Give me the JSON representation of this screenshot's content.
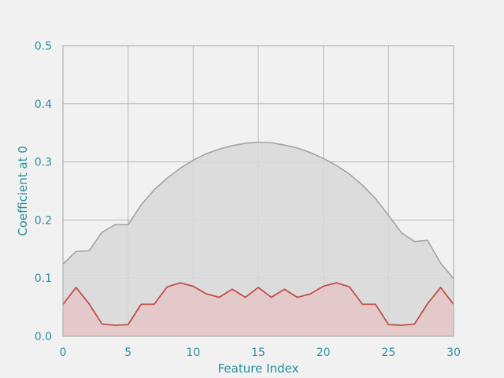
{
  "chart_data": {
    "type": "area",
    "xlabel": "Feature Index",
    "ylabel": "Coefficient at 0",
    "xlim": [
      0,
      30
    ],
    "ylim": [
      0,
      0.5
    ],
    "xticks": [
      0,
      5,
      10,
      15,
      20,
      25,
      30
    ],
    "yticks": [
      0.0,
      0.1,
      0.2,
      0.3,
      0.4,
      0.5
    ],
    "xtick_labels": [
      "0",
      "5",
      "10",
      "15",
      "20",
      "25",
      "30"
    ],
    "ytick_labels": [
      "0.0",
      "0.1",
      "0.2",
      "0.3",
      "0.4",
      "0.5"
    ],
    "grid": true,
    "x": [
      0,
      1,
      2,
      3,
      4,
      5,
      6,
      7,
      8,
      9,
      10,
      11,
      12,
      13,
      14,
      15,
      16,
      17,
      18,
      19,
      20,
      21,
      22,
      23,
      24,
      25,
      26,
      27,
      28,
      29,
      30
    ],
    "series": [
      {
        "values": [
          0.124,
          0.146,
          0.147,
          0.179,
          0.192,
          0.192,
          0.226,
          0.252,
          0.272,
          0.289,
          0.303,
          0.314,
          0.322,
          0.328,
          0.332,
          0.334,
          0.333,
          0.329,
          0.324,
          0.316,
          0.306,
          0.294,
          0.279,
          0.26,
          0.237,
          0.208,
          0.178,
          0.163,
          0.165,
          0.126,
          0.099
        ],
        "line_color": "#a4a4a4",
        "fill_color": "#d8d8d8"
      },
      {
        "values": [
          0.055,
          0.084,
          0.056,
          0.021,
          0.019,
          0.02,
          0.055,
          0.055,
          0.085,
          0.092,
          0.086,
          0.073,
          0.067,
          0.081,
          0.067,
          0.084,
          0.067,
          0.081,
          0.067,
          0.073,
          0.086,
          0.092,
          0.085,
          0.055,
          0.055,
          0.02,
          0.019,
          0.021,
          0.056,
          0.084,
          0.055
        ],
        "line_color": "#c0504d",
        "fill_color": "#e5c5c7"
      }
    ],
    "colors": {
      "background": "#f1f1f1",
      "plot_background": "#f1f1f1",
      "grid": "#b8b8b8",
      "tick_text": "#2a8fa0",
      "axis_text": "#2a8fa0",
      "spine": "#b0b0b0"
    }
  }
}
